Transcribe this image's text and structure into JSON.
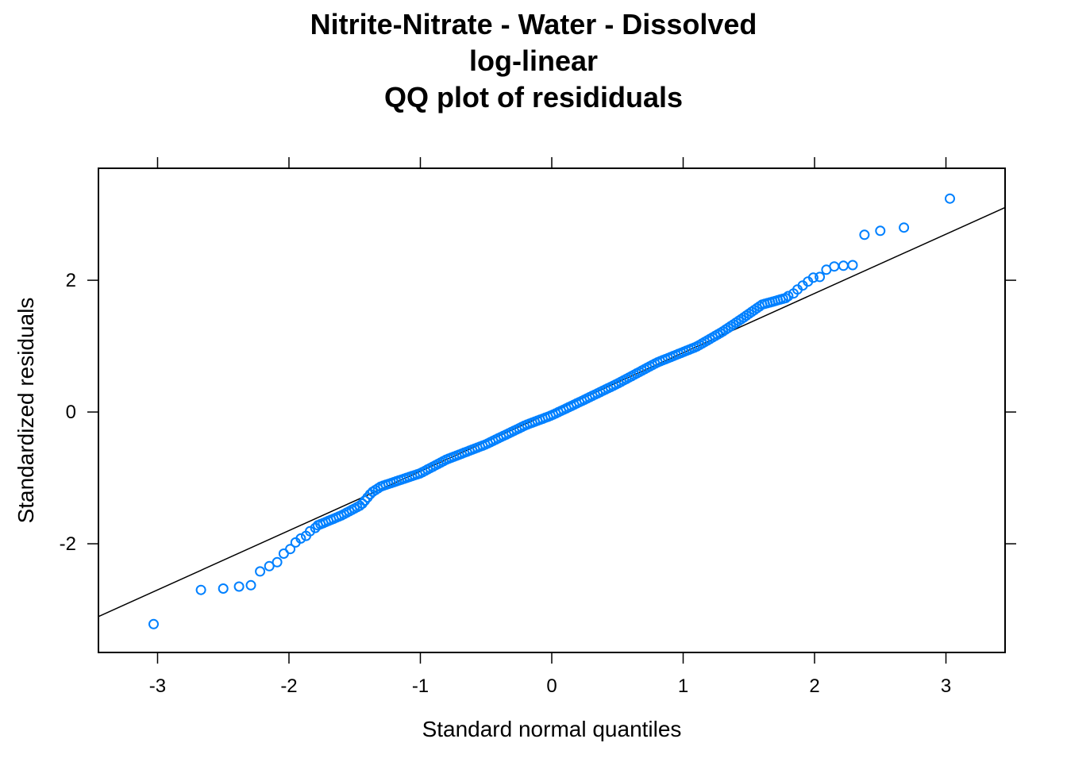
{
  "chart_data": {
    "type": "scatter",
    "title_lines": [
      "Nitrite-Nitrate - Water - Dissolved",
      "log-linear",
      "QQ plot of resididuals"
    ],
    "xlabel": "Standard normal quantiles",
    "ylabel": "Standardized residuals",
    "xlim": [
      -3.45,
      3.45
    ],
    "ylim": [
      -3.65,
      3.7
    ],
    "x_ticks": [
      -3,
      -2,
      -1,
      0,
      1,
      2,
      3
    ],
    "x_tick_labels": [
      "-3",
      "-2",
      "-1",
      "0",
      "1",
      "2",
      "3"
    ],
    "y_ticks": [
      -2,
      0,
      2
    ],
    "y_tick_labels": [
      "-2",
      "0",
      "2"
    ],
    "reference_line": {
      "slope": 0.9,
      "intercept": 0.0
    },
    "grid": false,
    "legend": "none",
    "colors": {
      "points": "#0080FF",
      "line": "#000000",
      "frame": "#000000"
    },
    "points": {
      "tail_points": [
        {
          "x": -3.03,
          "y": -3.22
        },
        {
          "x": -2.67,
          "y": -2.7
        },
        {
          "x": -2.5,
          "y": -2.68
        },
        {
          "x": -2.38,
          "y": -2.65
        },
        {
          "x": -2.29,
          "y": -2.63
        },
        {
          "x": -2.22,
          "y": -2.42
        },
        {
          "x": -2.15,
          "y": -2.34
        },
        {
          "x": -2.09,
          "y": -2.28
        },
        {
          "x": -2.04,
          "y": -2.15
        },
        {
          "x": -1.99,
          "y": -2.08
        },
        {
          "x": -1.95,
          "y": -1.98
        },
        {
          "x": -1.91,
          "y": -1.92
        },
        {
          "x": -1.87,
          "y": -1.88
        },
        {
          "x": -1.84,
          "y": -1.81
        },
        {
          "x": -1.8,
          "y": -1.76
        },
        {
          "x": 1.8,
          "y": 1.76
        },
        {
          "x": 1.84,
          "y": 1.8
        },
        {
          "x": 1.87,
          "y": 1.86
        },
        {
          "x": 1.91,
          "y": 1.92
        },
        {
          "x": 1.95,
          "y": 1.98
        },
        {
          "x": 1.99,
          "y": 2.04
        },
        {
          "x": 2.04,
          "y": 2.05
        },
        {
          "x": 2.09,
          "y": 2.16
        },
        {
          "x": 2.15,
          "y": 2.21
        },
        {
          "x": 2.22,
          "y": 2.22
        },
        {
          "x": 2.29,
          "y": 2.23
        },
        {
          "x": 2.38,
          "y": 2.69
        },
        {
          "x": 2.5,
          "y": 2.75
        },
        {
          "x": 2.68,
          "y": 2.8
        },
        {
          "x": 3.03,
          "y": 3.24
        }
      ],
      "central_band": {
        "x_range": [
          -1.78,
          1.78
        ],
        "count": 180,
        "trend_knots": [
          {
            "x": -1.78,
            "y": -1.72
          },
          {
            "x": -1.6,
            "y": -1.57
          },
          {
            "x": -1.45,
            "y": -1.41
          },
          {
            "x": -1.37,
            "y": -1.22
          },
          {
            "x": -1.3,
            "y": -1.13
          },
          {
            "x": -1.0,
            "y": -0.93
          },
          {
            "x": -0.8,
            "y": -0.72
          },
          {
            "x": -0.5,
            "y": -0.49
          },
          {
            "x": -0.2,
            "y": -0.2
          },
          {
            "x": 0.0,
            "y": -0.05
          },
          {
            "x": 0.2,
            "y": 0.14
          },
          {
            "x": 0.5,
            "y": 0.43
          },
          {
            "x": 0.8,
            "y": 0.75
          },
          {
            "x": 1.1,
            "y": 0.99
          },
          {
            "x": 1.3,
            "y": 1.22
          },
          {
            "x": 1.45,
            "y": 1.42
          },
          {
            "x": 1.6,
            "y": 1.63
          },
          {
            "x": 1.78,
            "y": 1.73
          }
        ]
      }
    }
  }
}
